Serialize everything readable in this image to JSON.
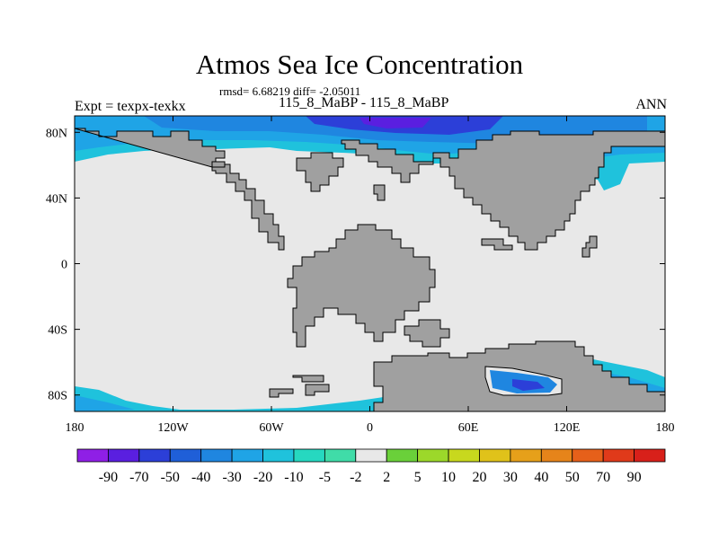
{
  "header": {
    "title": "Atmos Sea Ice Concentration",
    "stats": "rmsd= 6.68219 diff= -2.05011",
    "expt_label": "Expt = texpx-texkx",
    "expt_names": "115_8_MaBP - 115_8_MaBP",
    "season": "ANN"
  },
  "chart_data": {
    "type": "heatmap",
    "title": "Atmos Sea Ice Concentration",
    "subtitle": "rmsd= 6.68219 diff= -2.05011",
    "projection": "cylindrical equidistant",
    "x_ticks": [
      "180",
      "120W",
      "60W",
      "0",
      "60E",
      "120E",
      "180"
    ],
    "y_ticks": [
      "80N",
      "40N",
      "0",
      "40S",
      "80S"
    ],
    "xlim": [
      -180,
      180
    ],
    "ylim": [
      -90,
      90
    ],
    "colorbar": {
      "labels": [
        "-90",
        "-70",
        "-50",
        "-40",
        "-30",
        "-20",
        "-10",
        "-5",
        "-2",
        "2",
        "5",
        "10",
        "20",
        "30",
        "40",
        "50",
        "70",
        "90"
      ],
      "colors": [
        "#8f1fe6",
        "#5a1fe0",
        "#2c3fd8",
        "#1f5fd8",
        "#1f86e0",
        "#1fa4e6",
        "#1fc2dc",
        "#26d8c0",
        "#40dca8",
        "#e8e8e8",
        "#6ad03a",
        "#9cd82a",
        "#c8d81e",
        "#e0c21a",
        "#e6a01a",
        "#e6841a",
        "#e6601a",
        "#e03a1a",
        "#d8201a"
      ]
    },
    "land_color": "#a0a0a0",
    "zero_color": "#e8e8e8",
    "regions": [
      "Arctic ocean sea ice decrease (-10 to -90), strongest north of Eurasia",
      "Southern ocean sea ice decrease (-10 to -40) around Antarctica",
      "Small negative anomaly patch in embayment near 60E-120E, 65S-80S"
    ]
  },
  "colors": {
    "land": "#a0a0a0",
    "ocean": "#e8e8e8",
    "frame": "#000000"
  }
}
